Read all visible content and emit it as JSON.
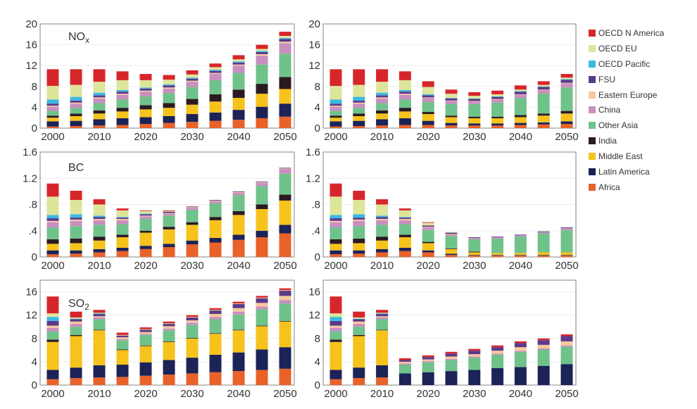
{
  "chart_data": {
    "type": "bar",
    "stacked": true,
    "categories": [
      "2000",
      "2005",
      "2010",
      "2015",
      "2020",
      "2025",
      "2030",
      "2035",
      "2040",
      "2045",
      "2050"
    ],
    "x_tick_labels": [
      "2000",
      "2010",
      "2020",
      "2030",
      "2040",
      "2050"
    ],
    "legend": {
      "placement": "right",
      "entries": [
        {
          "name": "OECD N America",
          "color": "#d7262b"
        },
        {
          "name": "OECD EU",
          "color": "#dde59b"
        },
        {
          "name": "OECD Pacific",
          "color": "#3ab9e4"
        },
        {
          "name": "FSU",
          "color": "#5b3a8a"
        },
        {
          "name": "Eastern Europe",
          "color": "#f7c99c"
        },
        {
          "name": "China",
          "color": "#c98fbf"
        },
        {
          "name": "Other Asia",
          "color": "#6fc28a"
        },
        {
          "name": "India",
          "color": "#2b1a22"
        },
        {
          "name": "Middle East",
          "color": "#f6c21c"
        },
        {
          "name": "Latin America",
          "color": "#1b2357"
        },
        {
          "name": "Africa",
          "color": "#e8622a"
        }
      ]
    },
    "stack_order_bottom_to_top": [
      "Africa",
      "Latin America",
      "Middle East",
      "India",
      "Other Asia",
      "China",
      "Eastern Europe",
      "FSU",
      "OECD Pacific",
      "OECD EU",
      "OECD N America"
    ],
    "panels": [
      {
        "id": "nox-left",
        "label": "NO",
        "label_sub": "x",
        "ylim": [
          0,
          20
        ],
        "yticks": [
          "0",
          "4",
          "8",
          "12",
          "16",
          "20"
        ],
        "ytick_values": [
          0,
          4,
          8,
          12,
          16,
          20
        ],
        "series": {
          "Africa": [
            0.3,
            0.4,
            0.5,
            0.6,
            0.8,
            1.0,
            1.2,
            1.4,
            1.6,
            1.9,
            2.2
          ],
          "Latin America": [
            1.0,
            1.0,
            1.2,
            1.3,
            1.3,
            1.3,
            1.5,
            1.6,
            1.9,
            2.2,
            2.5
          ],
          "Middle East": [
            0.7,
            0.9,
            1.1,
            1.3,
            1.5,
            1.6,
            1.8,
            2.1,
            2.3,
            2.5,
            2.8
          ],
          "India": [
            0.4,
            0.5,
            0.6,
            0.7,
            0.8,
            0.9,
            1.1,
            1.4,
            1.6,
            1.9,
            2.3
          ],
          "Other Asia": [
            0.9,
            1.1,
            1.4,
            1.6,
            1.7,
            1.9,
            2.3,
            2.7,
            3.2,
            3.7,
            4.5
          ],
          "China": [
            0.8,
            0.8,
            0.9,
            0.9,
            0.9,
            0.9,
            1.0,
            1.2,
            1.4,
            1.7,
            2.0
          ],
          "Eastern Europe": [
            0.2,
            0.2,
            0.2,
            0.2,
            0.2,
            0.2,
            0.2,
            0.2,
            0.2,
            0.3,
            0.3
          ],
          "FSU": [
            0.4,
            0.4,
            0.4,
            0.4,
            0.4,
            0.4,
            0.4,
            0.4,
            0.4,
            0.4,
            0.5
          ],
          "OECD Pacific": [
            0.8,
            0.7,
            0.5,
            0.3,
            0.2,
            0.2,
            0.2,
            0.2,
            0.2,
            0.2,
            0.2
          ],
          "OECD EU": [
            2.6,
            2.3,
            2.1,
            1.9,
            1.4,
            0.9,
            0.6,
            0.5,
            0.4,
            0.4,
            0.4
          ],
          "OECD N America": [
            3.2,
            3.0,
            2.4,
            1.7,
            1.2,
            0.9,
            0.8,
            0.7,
            0.8,
            0.8,
            0.8
          ]
        }
      },
      {
        "id": "nox-right",
        "label": "",
        "label_sub": "",
        "ylim": [
          0,
          20
        ],
        "yticks": [
          "0",
          "4",
          "8",
          "12",
          "16",
          "20"
        ],
        "ytick_values": [
          0,
          4,
          8,
          12,
          16,
          20
        ],
        "series": {
          "Africa": [
            0.3,
            0.4,
            0.5,
            0.6,
            0.6,
            0.5,
            0.5,
            0.5,
            0.6,
            0.7,
            0.8
          ],
          "Latin America": [
            1.0,
            1.0,
            1.2,
            1.3,
            0.8,
            0.5,
            0.4,
            0.4,
            0.4,
            0.4,
            0.5
          ],
          "Middle East": [
            0.7,
            0.9,
            1.1,
            1.3,
            1.3,
            1.1,
            1.0,
            1.0,
            1.1,
            1.3,
            1.5
          ],
          "India": [
            0.4,
            0.5,
            0.6,
            0.7,
            0.4,
            0.3,
            0.3,
            0.3,
            0.4,
            0.4,
            0.5
          ],
          "Other Asia": [
            0.9,
            1.1,
            1.4,
            1.6,
            1.9,
            2.2,
            2.4,
            2.7,
            3.3,
            3.8,
            4.5
          ],
          "China": [
            0.8,
            0.8,
            0.9,
            0.9,
            0.8,
            0.6,
            0.5,
            0.6,
            0.6,
            0.7,
            0.8
          ],
          "Eastern Europe": [
            0.2,
            0.2,
            0.2,
            0.2,
            0.1,
            0.1,
            0.1,
            0.1,
            0.1,
            0.1,
            0.1
          ],
          "FSU": [
            0.4,
            0.4,
            0.4,
            0.4,
            0.4,
            0.4,
            0.4,
            0.4,
            0.5,
            0.5,
            0.6
          ],
          "OECD Pacific": [
            0.8,
            0.7,
            0.5,
            0.3,
            0.2,
            0.1,
            0.1,
            0.1,
            0.1,
            0.1,
            0.1
          ],
          "OECD EU": [
            2.6,
            2.3,
            2.1,
            1.9,
            1.4,
            0.8,
            0.5,
            0.4,
            0.3,
            0.3,
            0.3
          ],
          "OECD N America": [
            3.2,
            3.0,
            2.4,
            1.7,
            1.1,
            0.8,
            0.7,
            0.7,
            0.8,
            0.7,
            0.7
          ]
        }
      },
      {
        "id": "bc-left",
        "label": "BC",
        "label_sub": "",
        "ylim": [
          0,
          1.6
        ],
        "yticks": [
          "0",
          ".4",
          ".8",
          "1.2",
          "1.6"
        ],
        "ytick_values": [
          0,
          0.4,
          0.8,
          1.2,
          1.6
        ],
        "series": {
          "Africa": [
            0.04,
            0.05,
            0.07,
            0.09,
            0.12,
            0.15,
            0.19,
            0.22,
            0.26,
            0.3,
            0.36
          ],
          "Latin America": [
            0.06,
            0.05,
            0.05,
            0.05,
            0.05,
            0.05,
            0.06,
            0.07,
            0.08,
            0.1,
            0.13
          ],
          "Middle East": [
            0.1,
            0.11,
            0.13,
            0.16,
            0.2,
            0.22,
            0.24,
            0.27,
            0.3,
            0.33,
            0.37
          ],
          "India": [
            0.07,
            0.07,
            0.06,
            0.04,
            0.03,
            0.04,
            0.04,
            0.05,
            0.06,
            0.07,
            0.09
          ],
          "Other Asia": [
            0.18,
            0.19,
            0.18,
            0.16,
            0.18,
            0.17,
            0.19,
            0.21,
            0.24,
            0.28,
            0.32
          ],
          "China": [
            0.08,
            0.08,
            0.07,
            0.06,
            0.04,
            0.03,
            0.03,
            0.03,
            0.04,
            0.05,
            0.07
          ],
          "Eastern Europe": [
            0.02,
            0.02,
            0.02,
            0.02,
            0.01,
            0.01,
            0.01,
            0.01,
            0.01,
            0.01,
            0.01
          ],
          "FSU": [
            0.04,
            0.03,
            0.03,
            0.02,
            0.02,
            0.02,
            0.01,
            0.01,
            0.01,
            0.01,
            0.01
          ],
          "OECD Pacific": [
            0.05,
            0.05,
            0.02,
            0.01,
            0.01,
            0.0,
            0.0,
            0.0,
            0.0,
            0.0,
            0.0
          ],
          "OECD EU": [
            0.28,
            0.22,
            0.17,
            0.1,
            0.04,
            0.01,
            0.0,
            0.0,
            0.0,
            0.0,
            0.0
          ],
          "OECD N America": [
            0.2,
            0.14,
            0.08,
            0.03,
            0.01,
            0.01,
            0.0,
            0.0,
            0.0,
            0.0,
            0.0
          ]
        }
      },
      {
        "id": "bc-right",
        "label": "",
        "label_sub": "",
        "ylim": [
          0,
          1.6
        ],
        "yticks": [
          "0",
          ".4",
          ".8",
          "1.2",
          "1.6"
        ],
        "ytick_values": [
          0,
          0.4,
          0.8,
          1.2,
          1.6
        ],
        "series": {
          "Africa": [
            0.04,
            0.05,
            0.07,
            0.09,
            0.07,
            0.03,
            0.02,
            0.02,
            0.02,
            0.02,
            0.02
          ],
          "Latin America": [
            0.06,
            0.05,
            0.05,
            0.05,
            0.03,
            0.02,
            0.01,
            0.01,
            0.01,
            0.01,
            0.01
          ],
          "Middle East": [
            0.1,
            0.11,
            0.13,
            0.16,
            0.11,
            0.07,
            0.04,
            0.03,
            0.03,
            0.04,
            0.04
          ],
          "India": [
            0.07,
            0.07,
            0.06,
            0.04,
            0.02,
            0.01,
            0.01,
            0.0,
            0.0,
            0.0,
            0.0
          ],
          "Other Asia": [
            0.18,
            0.19,
            0.18,
            0.16,
            0.18,
            0.19,
            0.19,
            0.22,
            0.25,
            0.29,
            0.34
          ],
          "China": [
            0.08,
            0.08,
            0.07,
            0.06,
            0.04,
            0.02,
            0.02,
            0.02,
            0.02,
            0.02,
            0.03
          ],
          "Eastern Europe": [
            0.02,
            0.02,
            0.02,
            0.02,
            0.01,
            0.01,
            0.0,
            0.0,
            0.0,
            0.0,
            0.0
          ],
          "FSU": [
            0.04,
            0.03,
            0.03,
            0.02,
            0.02,
            0.02,
            0.01,
            0.01,
            0.01,
            0.01,
            0.01
          ],
          "OECD Pacific": [
            0.05,
            0.05,
            0.02,
            0.01,
            0.0,
            0.0,
            0.0,
            0.0,
            0.0,
            0.0,
            0.0
          ],
          "OECD EU": [
            0.28,
            0.22,
            0.17,
            0.1,
            0.04,
            0.01,
            0.0,
            0.0,
            0.0,
            0.0,
            0.0
          ],
          "OECD N America": [
            0.2,
            0.14,
            0.08,
            0.03,
            0.01,
            0.0,
            0.0,
            0.0,
            0.0,
            0.0,
            0.0
          ]
        }
      },
      {
        "id": "so2-left",
        "label": "SO",
        "label_sub": "2",
        "ylim": [
          0,
          18
        ],
        "yticks": [
          "0",
          "4",
          "8",
          "12",
          "16"
        ],
        "ytick_values": [
          0,
          4,
          8,
          12,
          16
        ],
        "series": {
          "Africa": [
            1.0,
            1.2,
            1.3,
            1.4,
            1.6,
            1.8,
            2.0,
            2.2,
            2.4,
            2.6,
            2.8
          ],
          "Latin America": [
            1.6,
            1.8,
            2.1,
            2.1,
            2.3,
            2.5,
            2.7,
            3.0,
            3.2,
            3.5,
            3.7
          ],
          "Middle East": [
            4.8,
            5.4,
            6.0,
            2.5,
            2.8,
            3.1,
            3.3,
            3.6,
            3.8,
            4.0,
            4.4
          ],
          "India": [
            0.4,
            0.2,
            0.1,
            0.1,
            0.1,
            0.1,
            0.1,
            0.1,
            0.1,
            0.1,
            0.1
          ],
          "Other Asia": [
            1.4,
            1.4,
            1.8,
            1.6,
            1.8,
            1.9,
            2.2,
            2.4,
            2.6,
            2.8,
            3.0
          ],
          "China": [
            0.6,
            0.5,
            0.3,
            0.2,
            0.2,
            0.3,
            0.4,
            0.4,
            0.5,
            0.5,
            0.6
          ],
          "Eastern Europe": [
            0.4,
            0.4,
            0.2,
            0.3,
            0.3,
            0.4,
            0.4,
            0.5,
            0.6,
            0.6,
            0.7
          ],
          "FSU": [
            0.8,
            0.4,
            0.4,
            0.3,
            0.4,
            0.4,
            0.5,
            0.6,
            0.7,
            0.8,
            0.9
          ],
          "OECD Pacific": [
            0.7,
            0.1,
            0.1,
            0.0,
            0.0,
            0.0,
            0.0,
            0.0,
            0.0,
            0.0,
            0.0
          ],
          "OECD EU": [
            0.6,
            0.2,
            0.1,
            0.1,
            0.1,
            0.1,
            0.1,
            0.1,
            0.1,
            0.1,
            0.1
          ],
          "OECD N America": [
            2.9,
            1.0,
            0.5,
            0.4,
            0.3,
            0.3,
            0.3,
            0.3,
            0.3,
            0.3,
            0.3
          ]
        }
      },
      {
        "id": "so2-right",
        "label": "",
        "label_sub": "",
        "ylim": [
          0,
          18
        ],
        "yticks": [
          "0",
          "4",
          "8",
          "12",
          "16"
        ],
        "ytick_values": [
          0,
          4,
          8,
          12,
          16
        ],
        "series": {
          "Africa": [
            1.0,
            1.2,
            1.3,
            0.0,
            0.0,
            0.0,
            0.0,
            0.0,
            0.0,
            0.0,
            0.0
          ],
          "Latin America": [
            1.6,
            1.8,
            2.1,
            2.0,
            2.2,
            2.4,
            2.6,
            2.9,
            3.1,
            3.3,
            3.6
          ],
          "Middle East": [
            4.8,
            5.4,
            6.0,
            0.0,
            0.0,
            0.0,
            0.0,
            0.0,
            0.0,
            0.0,
            0.0
          ],
          "India": [
            0.4,
            0.2,
            0.1,
            0.0,
            0.0,
            0.0,
            0.0,
            0.0,
            0.0,
            0.0,
            0.0
          ],
          "Other Asia": [
            1.4,
            1.4,
            1.8,
            1.5,
            1.7,
            1.9,
            2.1,
            2.3,
            2.6,
            2.8,
            3.0
          ],
          "China": [
            0.6,
            0.5,
            0.3,
            0.2,
            0.2,
            0.2,
            0.2,
            0.2,
            0.2,
            0.2,
            0.2
          ],
          "Eastern Europe": [
            0.4,
            0.4,
            0.2,
            0.3,
            0.3,
            0.4,
            0.4,
            0.5,
            0.6,
            0.6,
            0.7
          ],
          "FSU": [
            0.8,
            0.4,
            0.4,
            0.3,
            0.4,
            0.5,
            0.6,
            0.6,
            0.7,
            0.8,
            0.9
          ],
          "OECD Pacific": [
            0.7,
            0.1,
            0.1,
            0.0,
            0.0,
            0.0,
            0.0,
            0.0,
            0.0,
            0.0,
            0.0
          ],
          "OECD EU": [
            0.6,
            0.2,
            0.1,
            0.0,
            0.0,
            0.0,
            0.0,
            0.0,
            0.0,
            0.0,
            0.0
          ],
          "OECD N America": [
            2.9,
            1.0,
            0.5,
            0.3,
            0.3,
            0.3,
            0.3,
            0.3,
            0.3,
            0.3,
            0.3
          ]
        }
      }
    ]
  }
}
